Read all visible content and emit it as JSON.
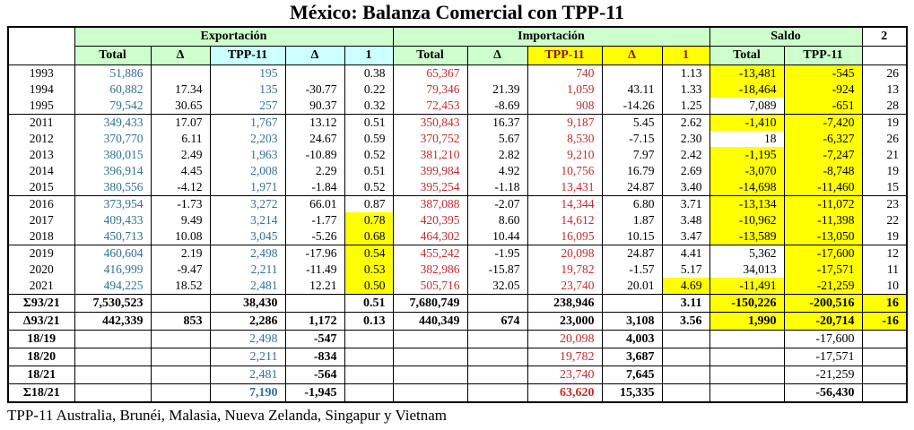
{
  "title": "México: Balanza Comercial con TPP-11",
  "footnote": "TPP-11 Australia, Brunéi, Malasia, Nueva Zelanda, Singapur y Vietnam",
  "colors": {
    "header_green": "#CCFFCC",
    "header_cyan": "#CCFFFF",
    "highlight_yellow": "#FFFF00",
    "export_blue": "#31719C",
    "import_red": "#C42B2B",
    "header_dark_red": "#8B1414"
  },
  "header": {
    "groups": [
      {
        "label": "",
        "span": 1,
        "rs": 2,
        "bg": "white"
      },
      {
        "label": "Exportación",
        "span": 5,
        "bg": "green"
      },
      {
        "label": "Importación",
        "span": 5,
        "bg": "green"
      },
      {
        "label": "Saldo",
        "span": 2,
        "bg": "green"
      },
      {
        "label": "2",
        "span": 1,
        "bg": "white"
      }
    ],
    "cols": [
      {
        "label": "Total",
        "bg": "green"
      },
      {
        "label": "Δ",
        "bg": "green"
      },
      {
        "label": "TPP-11",
        "bg": "cyan"
      },
      {
        "label": "Δ",
        "bg": "cyan"
      },
      {
        "label": "1",
        "bg": "cyan"
      },
      {
        "label": "Total",
        "bg": "green"
      },
      {
        "label": "Δ",
        "bg": "green"
      },
      {
        "label": "TPP-11",
        "bg": "y",
        "c": "darkred"
      },
      {
        "label": "Δ",
        "bg": "y",
        "c": "darkred"
      },
      {
        "label": "1",
        "bg": "y",
        "c": "darkred"
      },
      {
        "label": "Total",
        "bg": "green"
      },
      {
        "label": "TPP-11",
        "bg": "green"
      },
      {
        "label": "",
        "bg": "white"
      }
    ]
  },
  "rows": [
    {
      "cells": [
        "1993",
        {
          "v": "51,886",
          "c": "blue"
        },
        "",
        {
          "v": "195",
          "c": "blue"
        },
        "",
        "0.38",
        {
          "v": "65,367",
          "c": "red"
        },
        "",
        {
          "v": "740",
          "c": "red"
        },
        "",
        "1.13",
        {
          "v": "-13,481",
          "bg": "y"
        },
        {
          "v": "-545",
          "bg": "y"
        },
        "26"
      ]
    },
    {
      "cells": [
        "1994",
        {
          "v": "60,882",
          "c": "blue"
        },
        "17.34",
        {
          "v": "135",
          "c": "blue"
        },
        "-30.77",
        "0.22",
        {
          "v": "79,346",
          "c": "red"
        },
        "21.39",
        {
          "v": "1,059",
          "c": "red"
        },
        "43.11",
        "1.33",
        {
          "v": "-18,464",
          "bg": "y"
        },
        {
          "v": "-924",
          "bg": "y"
        },
        "13"
      ]
    },
    {
      "cells": [
        "1995",
        {
          "v": "79,542",
          "c": "blue"
        },
        "30.65",
        {
          "v": "257",
          "c": "blue"
        },
        "90.37",
        "0.32",
        {
          "v": "72,453",
          "c": "red"
        },
        "-8.69",
        {
          "v": "908",
          "c": "red"
        },
        "-14.26",
        "1.25",
        "7,089",
        {
          "v": "-651",
          "bg": "y"
        },
        "28"
      ]
    },
    {
      "sep": true,
      "cells": [
        "2011",
        {
          "v": "349,433",
          "c": "blue"
        },
        "17.07",
        {
          "v": "1,767",
          "c": "blue"
        },
        "13.12",
        "0.51",
        {
          "v": "350,843",
          "c": "red"
        },
        "16.37",
        {
          "v": "9,187",
          "c": "red"
        },
        "5.45",
        "2.62",
        {
          "v": "-1,410",
          "bg": "y"
        },
        {
          "v": "-7,420",
          "bg": "y"
        },
        "19"
      ]
    },
    {
      "cells": [
        "2012",
        {
          "v": "370,770",
          "c": "blue"
        },
        "6.11",
        {
          "v": "2,203",
          "c": "blue"
        },
        "24.67",
        "0.59",
        {
          "v": "370,752",
          "c": "red"
        },
        "5.67",
        {
          "v": "8,530",
          "c": "red"
        },
        "-7.15",
        "2.30",
        "18",
        {
          "v": "-6,327",
          "bg": "y"
        },
        "26"
      ]
    },
    {
      "cells": [
        "2013",
        {
          "v": "380,015",
          "c": "blue"
        },
        "2.49",
        {
          "v": "1,963",
          "c": "blue"
        },
        "-10.89",
        "0.52",
        {
          "v": "381,210",
          "c": "red"
        },
        "2.82",
        {
          "v": "9,210",
          "c": "red"
        },
        "7.97",
        "2.42",
        {
          "v": "-1,195",
          "bg": "y"
        },
        {
          "v": "-7,247",
          "bg": "y"
        },
        "21"
      ]
    },
    {
      "cells": [
        "2014",
        {
          "v": "396,914",
          "c": "blue"
        },
        "4.45",
        {
          "v": "2,008",
          "c": "blue"
        },
        "2.29",
        "0.51",
        {
          "v": "399,984",
          "c": "red"
        },
        "4.92",
        {
          "v": "10,756",
          "c": "red"
        },
        "16.79",
        "2.69",
        {
          "v": "-3,070",
          "bg": "y"
        },
        {
          "v": "-8,748",
          "bg": "y"
        },
        "19"
      ]
    },
    {
      "cells": [
        "2015",
        {
          "v": "380,556",
          "c": "blue"
        },
        "-4.12",
        {
          "v": "1,971",
          "c": "blue"
        },
        "-1.84",
        "0.52",
        {
          "v": "395,254",
          "c": "red"
        },
        "-1.18",
        {
          "v": "13,431",
          "c": "red"
        },
        "24.87",
        "3.40",
        {
          "v": "-14,698",
          "bg": "y"
        },
        {
          "v": "-11,460",
          "bg": "y"
        },
        "15"
      ]
    },
    {
      "sep": true,
      "cells": [
        "2016",
        {
          "v": "373,954",
          "c": "blue"
        },
        "-1.73",
        {
          "v": "3,272",
          "c": "blue"
        },
        "66.01",
        "0.87",
        {
          "v": "387,088",
          "c": "red"
        },
        "-2.07",
        {
          "v": "14,344",
          "c": "red"
        },
        "6.80",
        "3.71",
        {
          "v": "-13,134",
          "bg": "y"
        },
        {
          "v": "-11,072",
          "bg": "y"
        },
        "23"
      ]
    },
    {
      "cells": [
        "2017",
        {
          "v": "409,433",
          "c": "blue"
        },
        "9.49",
        {
          "v": "3,214",
          "c": "blue"
        },
        "-1.77",
        {
          "v": "0.78",
          "bg": "y"
        },
        {
          "v": "420,395",
          "c": "red"
        },
        "8.60",
        {
          "v": "14,612",
          "c": "red"
        },
        "1.87",
        "3.48",
        {
          "v": "-10,962",
          "bg": "y"
        },
        {
          "v": "-11,398",
          "bg": "y"
        },
        "22"
      ]
    },
    {
      "cells": [
        "2018",
        {
          "v": "450,713",
          "c": "blue"
        },
        "10.08",
        {
          "v": "3,045",
          "c": "blue"
        },
        "-5.26",
        {
          "v": "0.68",
          "bg": "y"
        },
        {
          "v": "464,302",
          "c": "red"
        },
        "10.44",
        {
          "v": "16,095",
          "c": "red"
        },
        "10.15",
        "3.47",
        {
          "v": "-13,589",
          "bg": "y"
        },
        {
          "v": "-13,050",
          "bg": "y"
        },
        "19"
      ]
    },
    {
      "sep": true,
      "cells": [
        "2019",
        {
          "v": "460,604",
          "c": "blue"
        },
        "2.19",
        {
          "v": "2,498",
          "c": "blue"
        },
        "-17.96",
        {
          "v": "0.54",
          "bg": "y"
        },
        {
          "v": "455,242",
          "c": "red"
        },
        "-1.95",
        {
          "v": "20,098",
          "c": "red"
        },
        "24.87",
        "4.41",
        "5,362",
        {
          "v": "-17,600",
          "bg": "y"
        },
        "12"
      ]
    },
    {
      "cells": [
        "2020",
        {
          "v": "416,999",
          "c": "blue"
        },
        "-9.47",
        {
          "v": "2,211",
          "c": "blue"
        },
        "-11.49",
        {
          "v": "0.53",
          "bg": "y"
        },
        {
          "v": "382,986",
          "c": "red"
        },
        "-15.87",
        {
          "v": "19,782",
          "c": "red"
        },
        "-1.57",
        "5.17",
        "34,013",
        {
          "v": "-17,571",
          "bg": "y"
        },
        "11"
      ]
    },
    {
      "cells": [
        "2021",
        {
          "v": "494,225",
          "c": "blue"
        },
        "18.52",
        {
          "v": "2,481",
          "c": "blue"
        },
        "12.21",
        {
          "v": "0.50",
          "bg": "y"
        },
        {
          "v": "505,716",
          "c": "red"
        },
        "32.05",
        {
          "v": "23,740",
          "c": "red"
        },
        "20.01",
        {
          "v": "4.69",
          "bg": "y"
        },
        {
          "v": "-11,491",
          "bg": "y"
        },
        {
          "v": "-21,259",
          "bg": "y"
        },
        "10"
      ]
    },
    {
      "sep": true,
      "tall": true,
      "cells": [
        {
          "v": "Σ93/21",
          "b": 1
        },
        {
          "v": "7,530,523",
          "b": 1
        },
        "",
        {
          "v": "38,430",
          "b": 1
        },
        "",
        {
          "v": "0.51",
          "b": 1
        },
        {
          "v": "7,680,749",
          "b": 1
        },
        "",
        {
          "v": "238,946",
          "b": 1
        },
        "",
        {
          "v": "3.11",
          "b": 1
        },
        {
          "v": "-150,226",
          "b": 1,
          "bg": "y"
        },
        {
          "v": "-200,516",
          "b": 1,
          "bg": "y"
        },
        {
          "v": "16",
          "b": 1,
          "bg": "y"
        }
      ]
    },
    {
      "sep": true,
      "tall": true,
      "cells": [
        {
          "v": "Δ93/21",
          "b": 1
        },
        {
          "v": "442,339",
          "b": 1
        },
        {
          "v": "853",
          "b": 1
        },
        {
          "v": "2,286",
          "b": 1
        },
        {
          "v": "1,172",
          "b": 1
        },
        {
          "v": "0.13",
          "b": 1
        },
        {
          "v": "440,349",
          "b": 1
        },
        {
          "v": "674",
          "b": 1
        },
        {
          "v": "23,000",
          "b": 1
        },
        {
          "v": "3,108",
          "b": 1
        },
        {
          "v": "3.56",
          "b": 1
        },
        {
          "v": "1,990",
          "b": 1,
          "bg": "y"
        },
        {
          "v": "-20,714",
          "b": 1,
          "bg": "y"
        },
        {
          "v": "-16",
          "b": 1,
          "bg": "y"
        }
      ]
    },
    {
      "sep": true,
      "tall": true,
      "cells": [
        {
          "v": "18/19",
          "b": 1
        },
        "",
        "",
        {
          "v": "2,498",
          "c": "blue"
        },
        {
          "v": "-547",
          "b": 1
        },
        "",
        "",
        "",
        {
          "v": "20,098",
          "c": "red"
        },
        {
          "v": "4,003",
          "b": 1
        },
        "",
        "",
        "-17,600",
        ""
      ]
    },
    {
      "sep": true,
      "tall": true,
      "cells": [
        {
          "v": "18/20",
          "b": 1
        },
        "",
        "",
        {
          "v": "2,211",
          "c": "blue"
        },
        {
          "v": "-834",
          "b": 1
        },
        "",
        "",
        "",
        {
          "v": "19,782",
          "c": "red"
        },
        {
          "v": "3,687",
          "b": 1
        },
        "",
        "",
        "-17,571",
        ""
      ]
    },
    {
      "sep": true,
      "tall": true,
      "cells": [
        {
          "v": "18/21",
          "b": 1
        },
        "",
        "",
        {
          "v": "2,481",
          "c": "blue"
        },
        {
          "v": "-564",
          "b": 1
        },
        "",
        "",
        "",
        {
          "v": "23,740",
          "c": "red"
        },
        {
          "v": "7,645",
          "b": 1
        },
        "",
        "",
        "-21,259",
        ""
      ]
    },
    {
      "sep": true,
      "tall": true,
      "cells": [
        {
          "v": "Σ18/21",
          "b": 1
        },
        "",
        "",
        {
          "v": "7,190",
          "c": "blue",
          "b": 1
        },
        {
          "v": "-1,945",
          "b": 1
        },
        "",
        "",
        "",
        {
          "v": "63,620",
          "c": "red",
          "b": 1
        },
        {
          "v": "15,335",
          "b": 1
        },
        "",
        "",
        {
          "v": "-56,430",
          "b": 1
        },
        ""
      ]
    }
  ]
}
